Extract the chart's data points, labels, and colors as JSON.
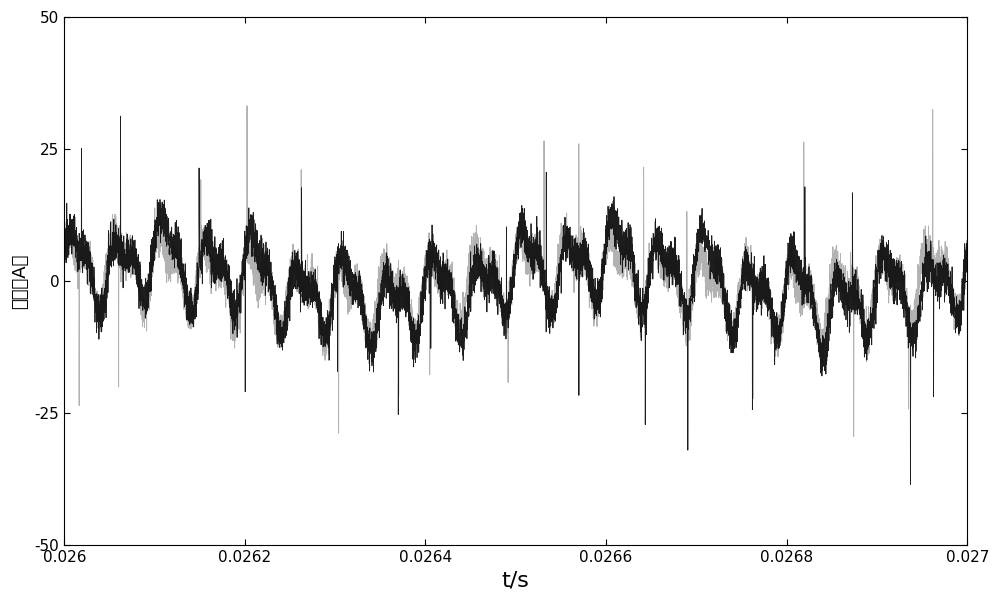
{
  "xlim": [
    0.026,
    0.027
  ],
  "ylim": [
    -50,
    50
  ],
  "xlabel": "t/s",
  "ylabel": "电流（A）",
  "xticks": [
    0.026,
    0.0262,
    0.0264,
    0.0266,
    0.0268,
    0.027
  ],
  "yticks": [
    -50,
    -25,
    0,
    25,
    50
  ],
  "xtick_labels": [
    "0.026",
    "0.0262",
    "0.0264",
    "0.0266",
    "0.0268",
    "0.027"
  ],
  "ytick_labels": [
    "-50",
    "-25",
    "0",
    "25",
    "50"
  ],
  "line_gray_color": "#aaaaaa",
  "line_black_color": "#111111",
  "background_color": "#ffffff",
  "fig_width": 10.0,
  "fig_height": 6.02,
  "seed": 12345,
  "n_points": 8000,
  "xlabel_fontsize": 16,
  "ylabel_fontsize": 13,
  "tick_fontsize": 11
}
